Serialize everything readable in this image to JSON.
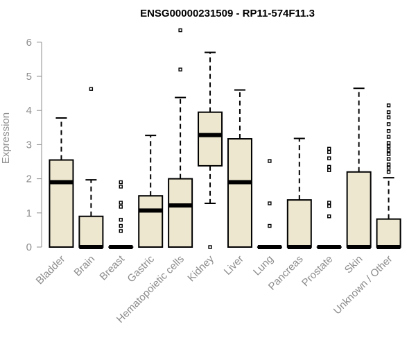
{
  "chart_data": {
    "type": "box",
    "title": "ENSG00000231509 - RP11-574F11.3",
    "xlabel": "",
    "ylabel": "Expression",
    "ylim": [
      0,
      6
    ],
    "yticks": [
      0,
      1,
      2,
      3,
      4,
      5,
      6
    ],
    "grid": false,
    "colors": {
      "box_fill": "#ede7cf",
      "box_stroke": "#000000",
      "axis": "#8c8c8c",
      "outlier": "#000000"
    },
    "categories": [
      "Bladder",
      "Brain",
      "Breast",
      "Gastric",
      "Hematopoietic cells",
      "Kidney",
      "Liver",
      "Lung",
      "Pancreas",
      "Prostate",
      "Skin",
      "Unknown / Other"
    ],
    "boxes": [
      {
        "category": "Bladder",
        "whisker_low": 0,
        "q1": 0,
        "median": 1.9,
        "q3": 2.55,
        "whisker_high": 3.78,
        "outliers": []
      },
      {
        "category": "Brain",
        "whisker_low": 0,
        "q1": 0,
        "median": 0,
        "q3": 0.9,
        "whisker_high": 1.97,
        "outliers": [
          4.63
        ]
      },
      {
        "category": "Breast",
        "whisker_low": 0,
        "q1": 0,
        "median": 0,
        "q3": 0,
        "whisker_high": 0,
        "outliers": [
          0.47,
          0.62,
          0.8,
          1.18,
          1.3,
          1.77,
          1.9
        ]
      },
      {
        "category": "Gastric",
        "whisker_low": 0,
        "q1": 0,
        "median": 1.07,
        "q3": 1.5,
        "whisker_high": 3.27,
        "outliers": []
      },
      {
        "category": "Hematopoietic cells",
        "whisker_low": 0,
        "q1": 0,
        "median": 1.22,
        "q3": 2.0,
        "whisker_high": 4.38,
        "outliers": [
          5.2,
          6.35
        ]
      },
      {
        "category": "Kidney",
        "whisker_low": 1.28,
        "q1": 2.38,
        "median": 3.28,
        "q3": 3.95,
        "whisker_high": 5.7,
        "outliers": [
          0
        ]
      },
      {
        "category": "Liver",
        "whisker_low": 0,
        "q1": 0,
        "median": 1.9,
        "q3": 3.17,
        "whisker_high": 4.6,
        "outliers": []
      },
      {
        "category": "Lung",
        "whisker_low": 0,
        "q1": 0,
        "median": 0,
        "q3": 0,
        "whisker_high": 0,
        "outliers": [
          0.62,
          1.28,
          2.52
        ]
      },
      {
        "category": "Pancreas",
        "whisker_low": 0,
        "q1": 0,
        "median": 0,
        "q3": 1.38,
        "whisker_high": 3.18,
        "outliers": []
      },
      {
        "category": "Prostate",
        "whisker_low": 0,
        "q1": 0,
        "median": 0,
        "q3": 0,
        "whisker_high": 0,
        "outliers": [
          0.9,
          1.2,
          1.3,
          2.25,
          2.35,
          2.6,
          2.78,
          2.88
        ]
      },
      {
        "category": "Skin",
        "whisker_low": 0,
        "q1": 0,
        "median": 0,
        "q3": 2.2,
        "whisker_high": 4.65,
        "outliers": []
      },
      {
        "category": "Unknown / Other",
        "whisker_low": 0,
        "q1": 0,
        "median": 0,
        "q3": 0.82,
        "whisker_high": 2.03,
        "outliers": [
          2.2,
          2.32,
          2.42,
          2.58,
          2.72,
          2.83,
          2.95,
          3.05,
          3.23,
          3.4,
          3.6,
          3.8,
          3.95,
          4.15
        ]
      }
    ]
  }
}
